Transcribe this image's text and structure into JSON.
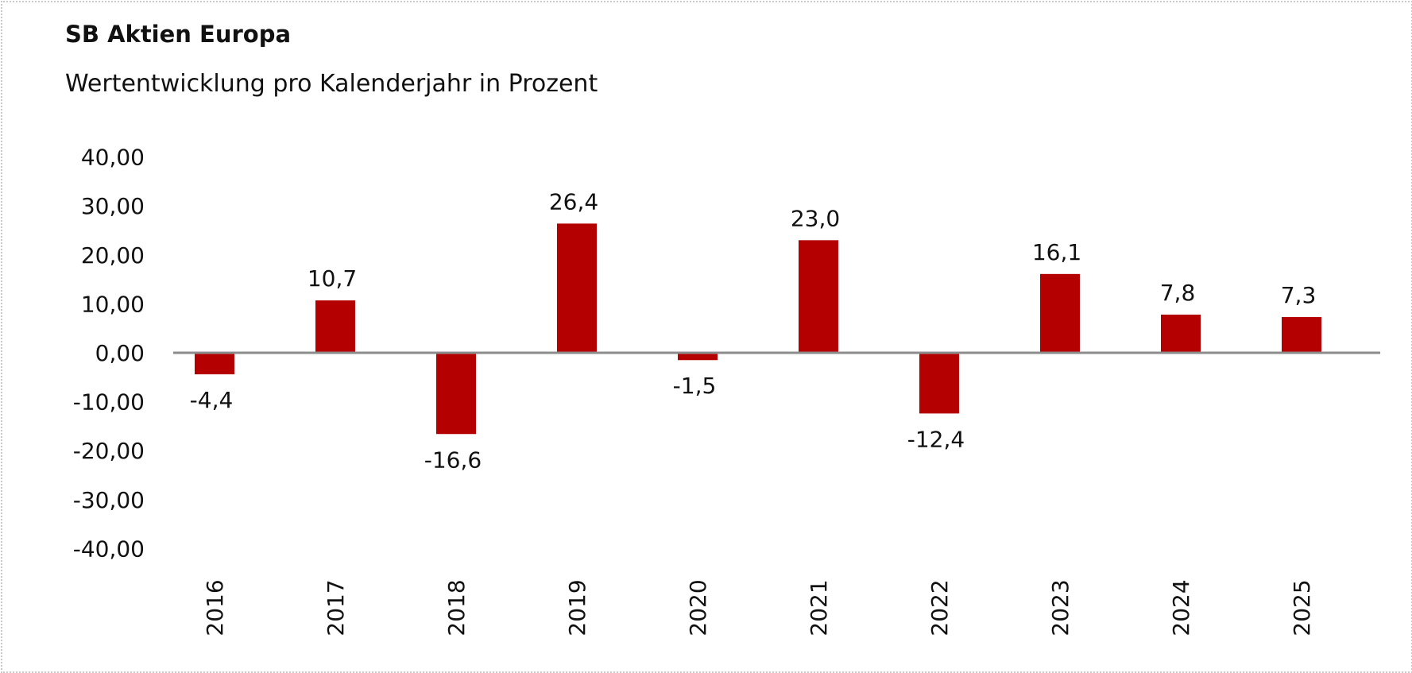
{
  "chart_data": {
    "type": "bar",
    "title": "SB Aktien Europa",
    "subtitle": "Wertentwicklung pro Kalenderjahr in Prozent",
    "categories": [
      "2016",
      "2017",
      "2018",
      "2019",
      "2020",
      "2021",
      "2022",
      "2023",
      "2024",
      "2025"
    ],
    "values": [
      -4.4,
      10.7,
      -16.6,
      26.4,
      -1.5,
      23.0,
      -12.4,
      16.1,
      7.8,
      7.3
    ],
    "data_labels": [
      "-4,4",
      "10,7",
      "-16,6",
      "26,4",
      "-1,5",
      "23,0",
      "-12,4",
      "16,1",
      "7,8",
      "7,3"
    ],
    "yticks": [
      40,
      30,
      20,
      10,
      0,
      -10,
      -20,
      -30,
      -40
    ],
    "ytick_labels": [
      "40,00",
      "30,00",
      "20,00",
      "10,00",
      "0,00",
      "-10,00",
      "-20,00",
      "-30,00",
      "-40,00"
    ],
    "ylim": [
      -40,
      40
    ],
    "xlabel": "",
    "ylabel": "",
    "grid": false,
    "bar_color": "#b50000",
    "axis_color": "#8c8c8c"
  }
}
